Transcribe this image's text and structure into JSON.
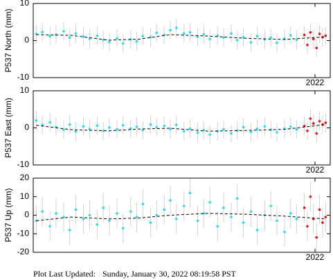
{
  "chart_data": [
    {
      "type": "scatter",
      "ylabel": "P537 North (mm)",
      "xlim": [
        2020.15,
        2022.1
      ],
      "xticks": [
        2022
      ],
      "ylim": [
        -10,
        10
      ],
      "yticks": [
        -10,
        0,
        10
      ],
      "series": [
        {
          "color": "#22e0f0",
          "error": 2.5,
          "x": [
            2020.17,
            2020.21,
            2020.26,
            2020.3,
            2020.35,
            2020.39,
            2020.43,
            2020.48,
            2020.52,
            2020.57,
            2020.61,
            2020.65,
            2020.7,
            2020.74,
            2020.79,
            2020.83,
            2020.87,
            2020.92,
            2020.96,
            2021.01,
            2021.05,
            2021.09,
            2021.14,
            2021.18,
            2021.23,
            2021.27,
            2021.31,
            2021.36,
            2021.4,
            2021.45,
            2021.49,
            2021.53,
            2021.58,
            2021.62,
            2021.67,
            2021.71,
            2021.75,
            2021.8,
            2021.84,
            2021.88
          ],
          "values": [
            1.8,
            2.3,
            1.2,
            1.6,
            2.5,
            0.8,
            1.9,
            1.1,
            0.5,
            1.3,
            0.2,
            -0.4,
            0.6,
            -0.8,
            0.3,
            -0.2,
            1.2,
            0.9,
            2.1,
            1.5,
            2.8,
            3.4,
            1.9,
            2.2,
            1.0,
            1.7,
            0.4,
            1.3,
            0.8,
            1.9,
            0.1,
            0.9,
            -0.5,
            1.2,
            0.3,
            0.8,
            -0.6,
            0.5,
            1.4,
            0.2
          ]
        },
        {
          "color": "#ee1111",
          "error": 2.5,
          "x": [
            2021.93,
            2021.95,
            2021.97,
            2021.99,
            2022.01,
            2022.03,
            2022.05,
            2022.07
          ],
          "values": [
            1.5,
            -1.2,
            2.2,
            0.4,
            -2.0,
            1.8,
            0.9,
            1.3
          ]
        },
        {
          "color": "#000000",
          "dash": true,
          "x": [
            2020.17,
            2020.4,
            2020.65,
            2020.85,
            2021.05,
            2021.3,
            2021.55,
            2021.8,
            2022.07
          ],
          "values": [
            1.6,
            1.4,
            0.1,
            0.4,
            1.6,
            1.2,
            0.6,
            0.3,
            1.0
          ]
        }
      ]
    },
    {
      "type": "scatter",
      "ylabel": "P537 East (mm)",
      "xlim": [
        2020.15,
        2022.1
      ],
      "xticks": [
        2022
      ],
      "ylim": [
        -10,
        10
      ],
      "yticks": [
        -10,
        0,
        10
      ],
      "series": [
        {
          "color": "#22e0f0",
          "error": 2.5,
          "x": [
            2020.17,
            2020.21,
            2020.26,
            2020.3,
            2020.35,
            2020.39,
            2020.43,
            2020.48,
            2020.52,
            2020.57,
            2020.61,
            2020.65,
            2020.7,
            2020.74,
            2020.79,
            2020.83,
            2020.87,
            2020.92,
            2020.96,
            2021.01,
            2021.05,
            2021.09,
            2021.14,
            2021.18,
            2021.23,
            2021.27,
            2021.31,
            2021.36,
            2021.4,
            2021.45,
            2021.49,
            2021.53,
            2021.58,
            2021.62,
            2021.67,
            2021.71,
            2021.75,
            2021.8,
            2021.84,
            2021.88
          ],
          "values": [
            2.0,
            0.8,
            1.5,
            0.2,
            -0.5,
            0.9,
            -1.0,
            0.4,
            -0.3,
            0.6,
            -0.8,
            0.1,
            -0.4,
            0.7,
            -0.2,
            0.3,
            -0.6,
            0.9,
            0.2,
            0.5,
            -0.3,
            0.8,
            -0.9,
            -0.2,
            -1.3,
            -0.6,
            -1.8,
            -0.9,
            -0.4,
            -1.5,
            -0.7,
            0.2,
            -1.1,
            -0.3,
            0.4,
            -0.5,
            -1.2,
            -0.2,
            0.3,
            -0.4
          ]
        },
        {
          "color": "#ee1111",
          "error": 2.5,
          "x": [
            2021.93,
            2021.95,
            2021.97,
            2021.99,
            2022.01,
            2022.03,
            2022.05,
            2022.07
          ],
          "values": [
            0.5,
            -0.8,
            2.5,
            1.2,
            -1.5,
            1.8,
            0.9,
            1.4
          ]
        },
        {
          "color": "#000000",
          "dash": true,
          "x": [
            2020.17,
            2020.4,
            2020.65,
            2020.85,
            2021.05,
            2021.3,
            2021.55,
            2021.8,
            2022.07
          ],
          "values": [
            0.7,
            -0.5,
            -0.8,
            -0.3,
            -0.1,
            -0.9,
            -0.7,
            -0.4,
            0.9
          ]
        }
      ]
    },
    {
      "type": "scatter",
      "ylabel": "P537 Up (mm)",
      "xlim": [
        2020.15,
        2022.1
      ],
      "xticks": [
        2022
      ],
      "ylim": [
        -20,
        20
      ],
      "yticks": [
        -20,
        -10,
        0,
        10,
        20
      ],
      "series": [
        {
          "color": "#22e0f0",
          "error": 8,
          "x": [
            2020.17,
            2020.21,
            2020.26,
            2020.3,
            2020.35,
            2020.39,
            2020.43,
            2020.48,
            2020.52,
            2020.57,
            2020.61,
            2020.65,
            2020.7,
            2020.74,
            2020.79,
            2020.83,
            2020.87,
            2020.92,
            2020.96,
            2021.01,
            2021.05,
            2021.09,
            2021.14,
            2021.18,
            2021.23,
            2021.27,
            2021.31,
            2021.36,
            2021.4,
            2021.45,
            2021.49,
            2021.53,
            2021.58,
            2021.62,
            2021.67,
            2021.71,
            2021.75,
            2021.8,
            2021.84,
            2021.88
          ],
          "values": [
            -3,
            2,
            -6,
            1,
            -1,
            -8,
            3,
            -2,
            0,
            -5,
            4,
            -3,
            1,
            -7,
            2,
            -1,
            6,
            -4,
            0,
            3,
            8,
            -2,
            5,
            12,
            -3,
            1,
            7,
            -6,
            4,
            -1,
            9,
            -4,
            2,
            -8,
            0,
            5,
            -3,
            -9,
            1,
            -2
          ]
        },
        {
          "color": "#ee1111",
          "error": 8,
          "x": [
            2021.93,
            2021.95,
            2021.97,
            2021.99,
            2022.01,
            2022.03,
            2022.05,
            2022.07
          ],
          "values": [
            4,
            -6,
            10,
            -2,
            -12,
            3,
            -4,
            -1
          ]
        },
        {
          "color": "#000000",
          "dash": true,
          "x": [
            2020.17,
            2020.4,
            2020.65,
            2020.85,
            2021.05,
            2021.3,
            2021.55,
            2021.8,
            2022.07
          ],
          "values": [
            -3,
            -1,
            -2,
            -1.5,
            0,
            1,
            0.5,
            -0.5,
            -2
          ]
        }
      ]
    }
  ],
  "footer": {
    "label": "Plot Last Updated:",
    "value": "Sunday, January 30, 2022 08:19:58 PST"
  }
}
